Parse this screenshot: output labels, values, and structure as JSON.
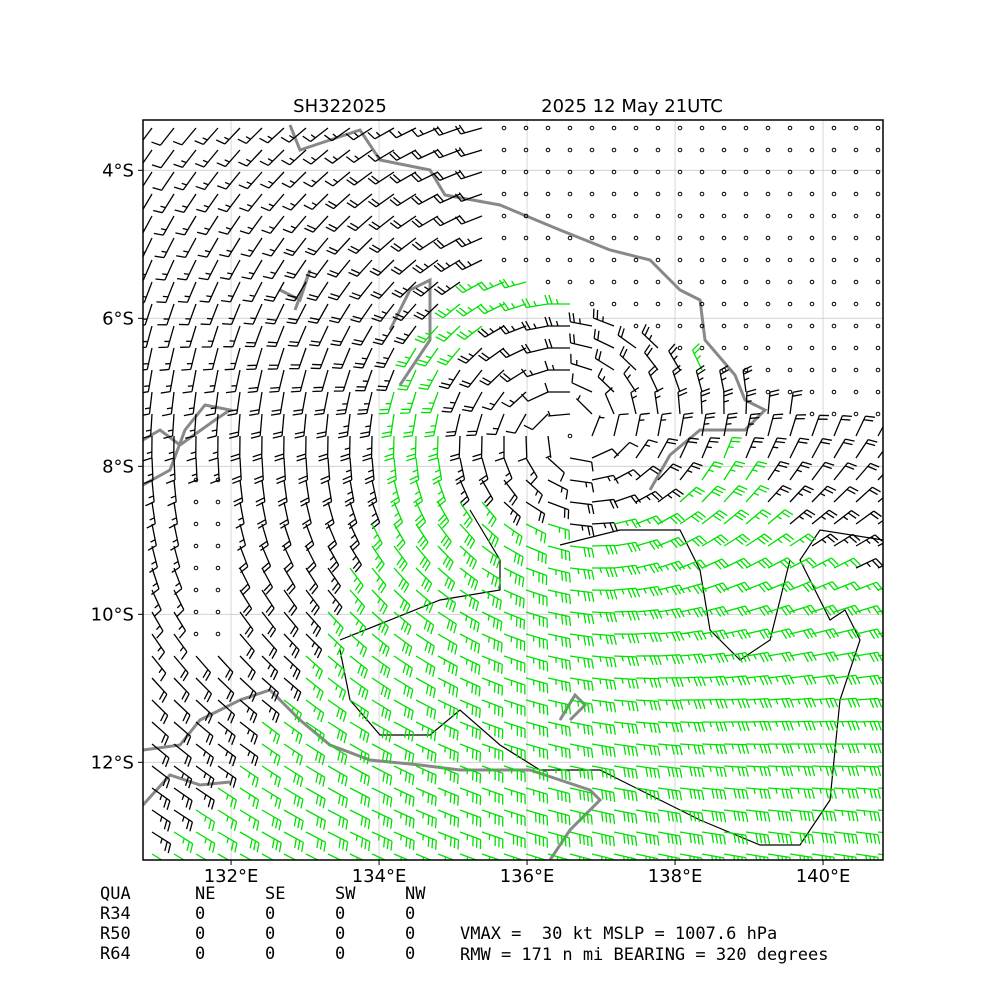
{
  "chart_data": {
    "type": "barbs",
    "title_left": "SH322025",
    "title_right": "2025 12 May 21UTC",
    "xlim": [
      130.81,
      140.81
    ],
    "ylim": [
      -13.32,
      -3.32
    ],
    "xticks": [
      {
        "value": 132,
        "label": "132°E"
      },
      {
        "value": 134,
        "label": "134°E"
      },
      {
        "value": 136,
        "label": "136°E"
      },
      {
        "value": 138,
        "label": "138°E"
      },
      {
        "value": 140,
        "label": "140°E"
      }
    ],
    "yticks": [
      {
        "value": -4,
        "label": "4°S"
      },
      {
        "value": -6,
        "label": "6°S"
      },
      {
        "value": -8,
        "label": "8°S"
      },
      {
        "value": -10,
        "label": "10°S"
      },
      {
        "value": -12,
        "label": "12°S"
      }
    ],
    "grid": true
  },
  "table": {
    "header": [
      "QUA",
      "NE",
      "SE",
      "SW",
      "NW"
    ],
    "rows": [
      [
        "R34",
        0,
        0,
        0,
        0
      ],
      [
        "R50",
        0,
        0,
        0,
        0
      ],
      [
        "R64",
        0,
        0,
        0,
        0
      ]
    ]
  },
  "summary": [
    "VMAX =  30 kt MSLP = 1007.6 hPa",
    "RMW = 171 n mi BEARING = 320 degrees"
  ]
}
